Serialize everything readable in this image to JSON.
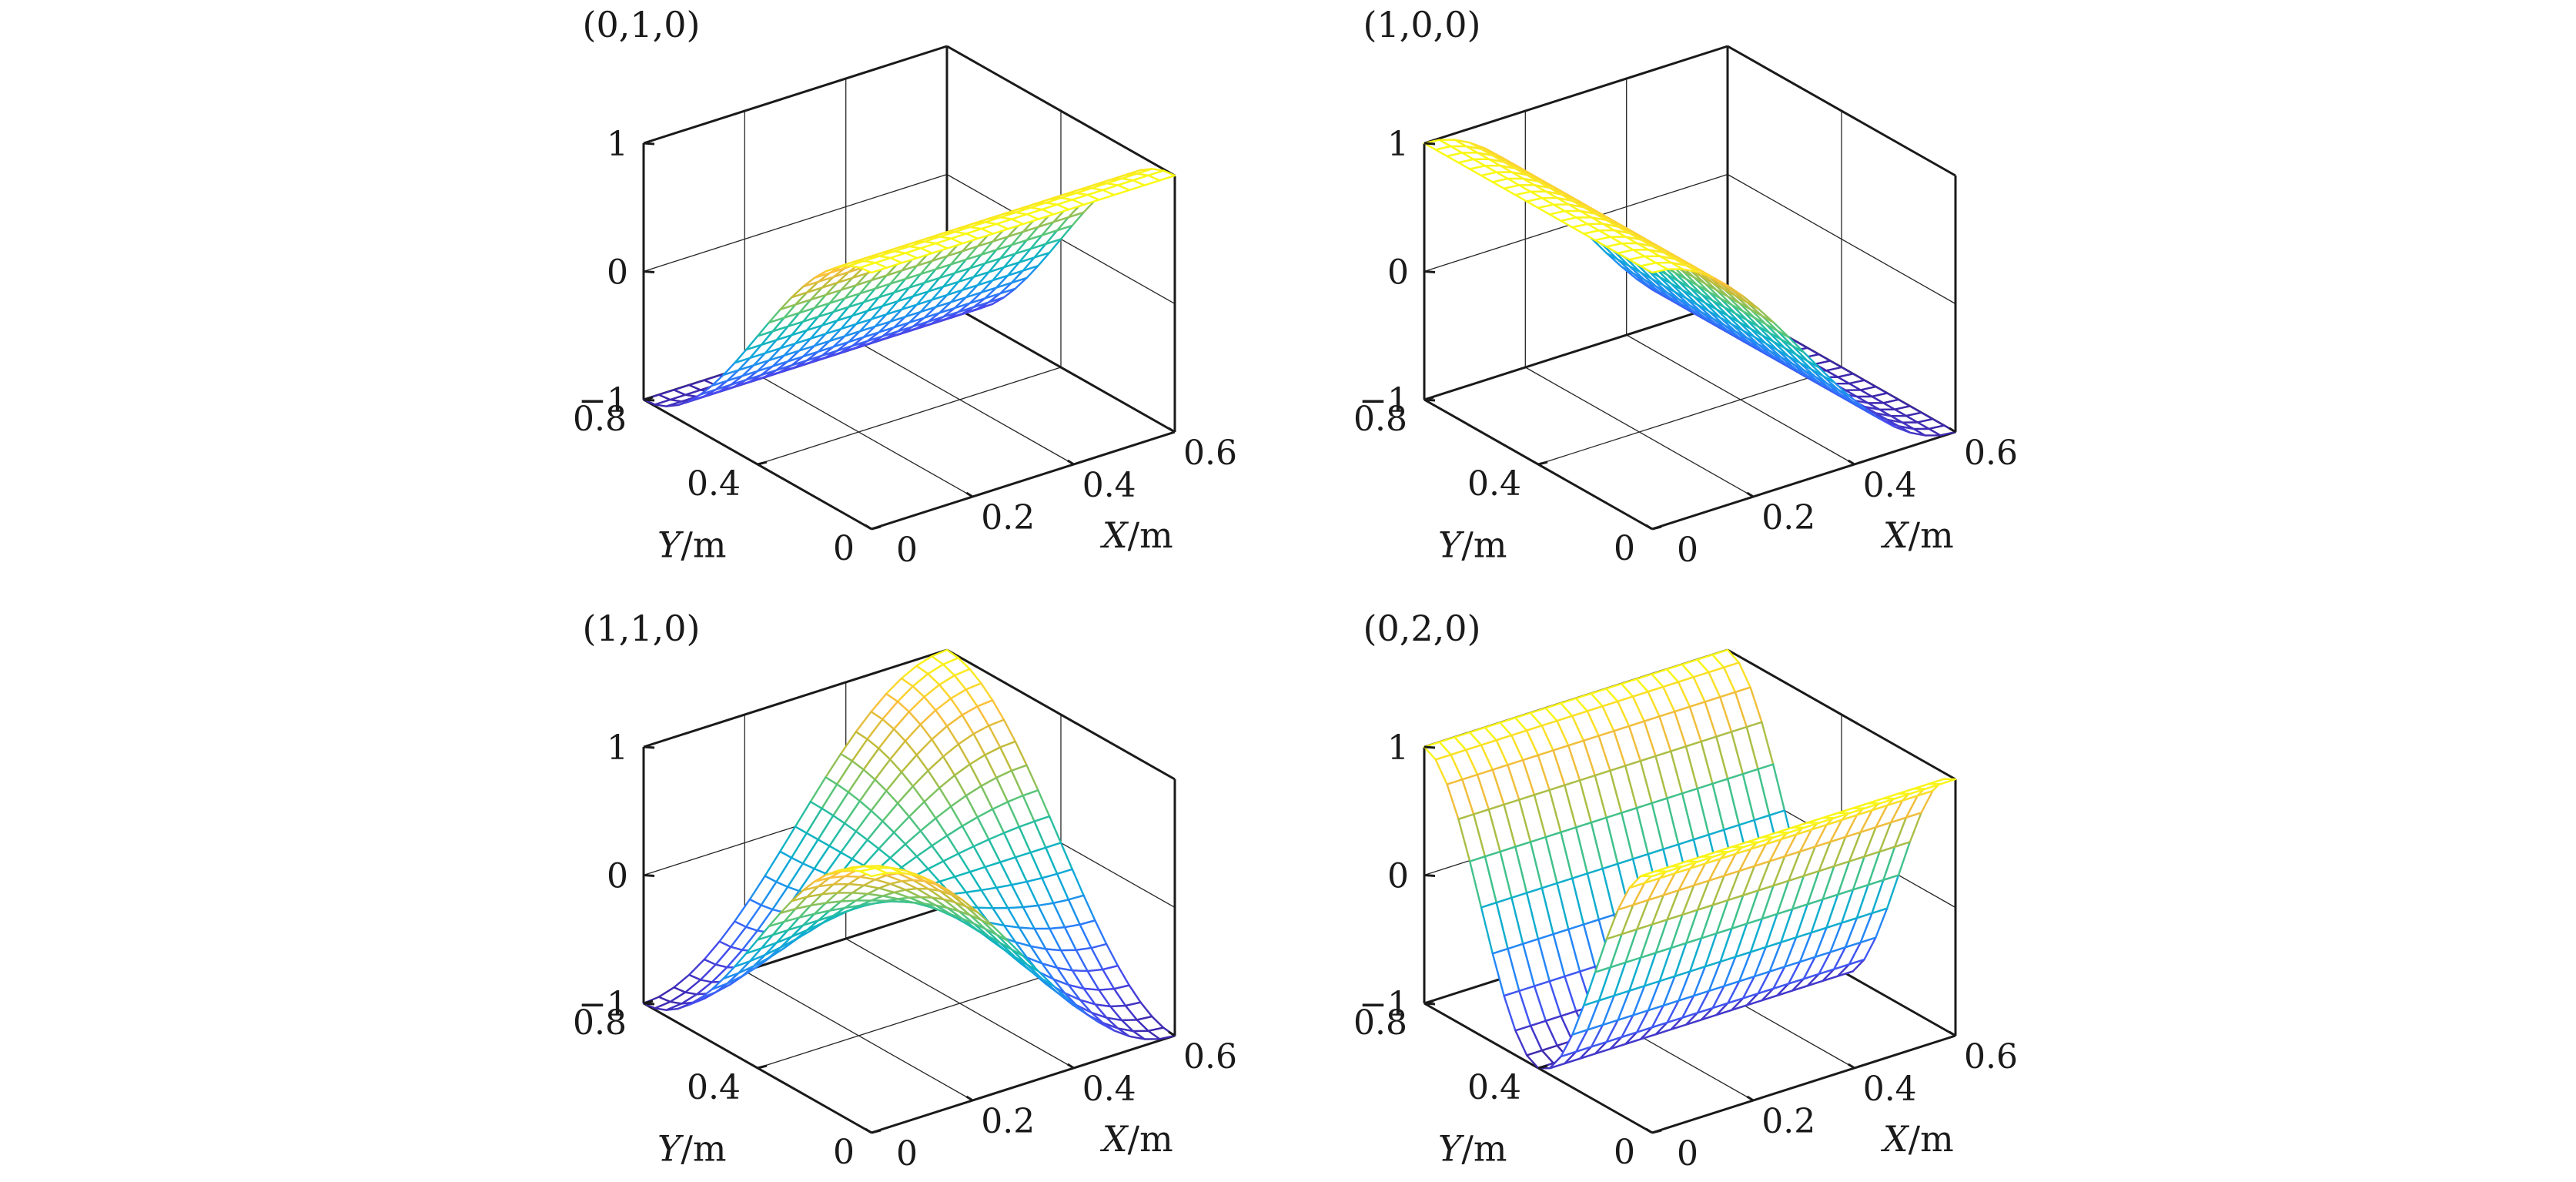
{
  "figure": {
    "description_free": true
  },
  "chart_data": [
    {
      "type": "surface",
      "title": "(0,1,0)",
      "mode": [
        0,
        1,
        0
      ],
      "xlabel": {
        "var": "X",
        "unit": "/m"
      },
      "ylabel": {
        "var": "Y",
        "unit": "/m"
      },
      "xlim": [
        0,
        0.6
      ],
      "ylim": [
        0,
        0.8
      ],
      "zlim": [
        -1,
        1
      ],
      "xticks": [
        {
          "v": 0,
          "label": "0"
        },
        {
          "v": 0.2,
          "label": "0.2"
        },
        {
          "v": 0.4,
          "label": "0.4"
        },
        {
          "v": 0.6,
          "label": "0.6"
        }
      ],
      "yticks": [
        {
          "v": 0,
          "label": "0"
        },
        {
          "v": 0.4,
          "label": "0.4"
        },
        {
          "v": 0.8,
          "label": "0.8"
        }
      ],
      "zticks": [
        {
          "v": -1,
          "label": "−1"
        },
        {
          "v": 0,
          "label": "0"
        },
        {
          "v": 1,
          "label": "1"
        }
      ],
      "grid": true,
      "colormap": "parula",
      "mesh": [
        21,
        21
      ],
      "function": "cos(m*pi*x/Lx)*cos(n*pi*y/Ly)"
    },
    {
      "type": "surface",
      "title": "(1,0,0)",
      "mode": [
        1,
        0,
        0
      ],
      "xlabel": {
        "var": "X",
        "unit": "/m"
      },
      "ylabel": {
        "var": "Y",
        "unit": "/m"
      },
      "xlim": [
        0,
        0.6
      ],
      "ylim": [
        0,
        0.8
      ],
      "zlim": [
        -1,
        1
      ],
      "xticks": [
        {
          "v": 0,
          "label": "0"
        },
        {
          "v": 0.2,
          "label": "0.2"
        },
        {
          "v": 0.4,
          "label": "0.4"
        },
        {
          "v": 0.6,
          "label": "0.6"
        }
      ],
      "yticks": [
        {
          "v": 0,
          "label": "0"
        },
        {
          "v": 0.4,
          "label": "0.4"
        },
        {
          "v": 0.8,
          "label": "0.8"
        }
      ],
      "zticks": [
        {
          "v": -1,
          "label": "−1"
        },
        {
          "v": 0,
          "label": "0"
        },
        {
          "v": 1,
          "label": "1"
        }
      ],
      "grid": true,
      "colormap": "parula",
      "mesh": [
        21,
        21
      ],
      "function": "cos(m*pi*x/Lx)*cos(n*pi*y/Ly)"
    },
    {
      "type": "surface",
      "title": "(1,1,0)",
      "mode": [
        1,
        1,
        0
      ],
      "xlabel": {
        "var": "X",
        "unit": "/m"
      },
      "ylabel": {
        "var": "Y",
        "unit": "/m"
      },
      "xlim": [
        0,
        0.6
      ],
      "ylim": [
        0,
        0.8
      ],
      "zlim": [
        -1,
        1
      ],
      "xticks": [
        {
          "v": 0,
          "label": "0"
        },
        {
          "v": 0.2,
          "label": "0.2"
        },
        {
          "v": 0.4,
          "label": "0.4"
        },
        {
          "v": 0.6,
          "label": "0.6"
        }
      ],
      "yticks": [
        {
          "v": 0,
          "label": "0"
        },
        {
          "v": 0.4,
          "label": "0.4"
        },
        {
          "v": 0.8,
          "label": "0.8"
        }
      ],
      "zticks": [
        {
          "v": -1,
          "label": "−1"
        },
        {
          "v": 0,
          "label": "0"
        },
        {
          "v": 1,
          "label": "1"
        }
      ],
      "grid": true,
      "colormap": "parula",
      "mesh": [
        21,
        21
      ],
      "function": "cos(m*pi*x/Lx)*cos(n*pi*y/Ly)"
    },
    {
      "type": "surface",
      "title": "(0,2,0)",
      "mode": [
        0,
        2,
        0
      ],
      "xlabel": {
        "var": "X",
        "unit": "/m"
      },
      "ylabel": {
        "var": "Y",
        "unit": "/m"
      },
      "xlim": [
        0,
        0.6
      ],
      "ylim": [
        0,
        0.8
      ],
      "zlim": [
        -1,
        1
      ],
      "xticks": [
        {
          "v": 0,
          "label": "0"
        },
        {
          "v": 0.2,
          "label": "0.2"
        },
        {
          "v": 0.4,
          "label": "0.4"
        },
        {
          "v": 0.6,
          "label": "0.6"
        }
      ],
      "yticks": [
        {
          "v": 0,
          "label": "0"
        },
        {
          "v": 0.4,
          "label": "0.4"
        },
        {
          "v": 0.8,
          "label": "0.8"
        }
      ],
      "zticks": [
        {
          "v": -1,
          "label": "−1"
        },
        {
          "v": 0,
          "label": "0"
        },
        {
          "v": 1,
          "label": "1"
        }
      ],
      "grid": true,
      "colormap": "parula",
      "mesh": [
        21,
        21
      ],
      "function": "cos(m*pi*x/Lx)*cos(n*pi*y/Ly)"
    }
  ]
}
